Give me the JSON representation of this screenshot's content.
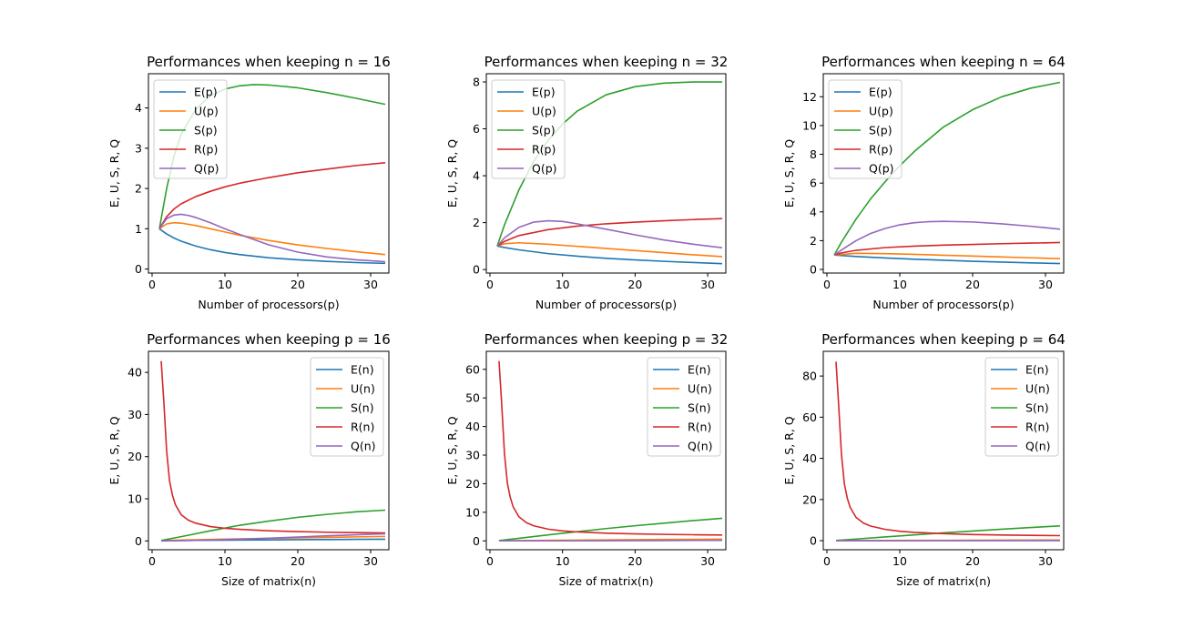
{
  "chart_data": [
    {
      "type": "line",
      "title": "Performances when keeping n = 16",
      "xlabel": "Number of processors(p)",
      "ylabel": "E, U, S, R, Q",
      "xlim": [
        -0.5,
        32.5
      ],
      "ylim": [
        -0.1,
        4.85
      ],
      "xticks": [
        0,
        10,
        20,
        30
      ],
      "yticks": [
        0,
        1,
        2,
        3,
        4
      ],
      "legend": "upper left",
      "series": [
        {
          "name": "E(p)",
          "color": "#1f77b4",
          "x": [
            1,
            2,
            3,
            4,
            6,
            8,
            10,
            12,
            16,
            20,
            24,
            28,
            32
          ],
          "y": [
            1.0,
            0.87,
            0.77,
            0.69,
            0.57,
            0.48,
            0.41,
            0.36,
            0.28,
            0.23,
            0.19,
            0.16,
            0.14
          ]
        },
        {
          "name": "U(p)",
          "color": "#ff7f0e",
          "x": [
            1,
            2,
            3,
            4,
            6,
            8,
            10,
            12,
            16,
            20,
            24,
            28,
            32
          ],
          "y": [
            1.0,
            1.12,
            1.15,
            1.14,
            1.08,
            1.0,
            0.92,
            0.84,
            0.71,
            0.6,
            0.51,
            0.43,
            0.36
          ]
        },
        {
          "name": "S(p)",
          "color": "#2ca02c",
          "x": [
            1,
            2,
            3,
            4,
            6,
            8,
            10,
            12,
            14,
            16,
            20,
            24,
            28,
            32
          ],
          "y": [
            1.0,
            2.0,
            2.8,
            3.35,
            3.97,
            4.3,
            4.47,
            4.55,
            4.58,
            4.57,
            4.5,
            4.38,
            4.24,
            4.09
          ]
        },
        {
          "name": "R(p)",
          "color": "#d62728",
          "x": [
            1,
            2,
            3,
            4,
            6,
            8,
            10,
            12,
            16,
            20,
            24,
            28,
            32
          ],
          "y": [
            1.0,
            1.3,
            1.49,
            1.62,
            1.8,
            1.93,
            2.04,
            2.13,
            2.27,
            2.39,
            2.48,
            2.57,
            2.64
          ]
        },
        {
          "name": "Q(p)",
          "color": "#9467bd",
          "x": [
            1,
            2,
            3,
            4,
            5,
            6,
            8,
            10,
            12,
            16,
            20,
            24,
            28,
            32
          ],
          "y": [
            1.0,
            1.25,
            1.34,
            1.36,
            1.33,
            1.28,
            1.15,
            1.0,
            0.86,
            0.6,
            0.42,
            0.3,
            0.23,
            0.18
          ]
        }
      ]
    },
    {
      "type": "line",
      "title": "Performances when keeping n = 32",
      "xlabel": "Number of processors(p)",
      "ylabel": "E, U, S, R, Q",
      "xlim": [
        -0.5,
        32.5
      ],
      "ylim": [
        -0.15,
        8.35
      ],
      "xticks": [
        0,
        10,
        20,
        30
      ],
      "yticks": [
        0,
        2,
        4,
        6,
        8
      ],
      "legend": "upper left",
      "series": [
        {
          "name": "E(p)",
          "color": "#1f77b4",
          "x": [
            1,
            2,
            4,
            8,
            12,
            16,
            20,
            24,
            28,
            32
          ],
          "y": [
            1.0,
            0.94,
            0.84,
            0.68,
            0.57,
            0.48,
            0.41,
            0.35,
            0.3,
            0.25
          ]
        },
        {
          "name": "U(p)",
          "color": "#ff7f0e",
          "x": [
            1,
            2,
            4,
            8,
            12,
            16,
            20,
            24,
            28,
            32
          ],
          "y": [
            1.0,
            1.1,
            1.14,
            1.08,
            0.99,
            0.9,
            0.81,
            0.72,
            0.63,
            0.55
          ]
        },
        {
          "name": "S(p)",
          "color": "#2ca02c",
          "x": [
            1,
            2,
            4,
            6,
            8,
            10,
            12,
            16,
            20,
            24,
            28,
            32
          ],
          "y": [
            1.0,
            1.9,
            3.4,
            4.6,
            5.5,
            6.2,
            6.75,
            7.45,
            7.8,
            7.95,
            8.0,
            8.0
          ]
        },
        {
          "name": "R(p)",
          "color": "#d62728",
          "x": [
            1,
            2,
            4,
            8,
            12,
            16,
            20,
            24,
            28,
            32
          ],
          "y": [
            1.0,
            1.2,
            1.45,
            1.7,
            1.85,
            1.95,
            2.02,
            2.08,
            2.13,
            2.17
          ]
        },
        {
          "name": "Q(p)",
          "color": "#9467bd",
          "x": [
            1,
            2,
            4,
            6,
            8,
            10,
            12,
            16,
            20,
            24,
            28,
            32
          ],
          "y": [
            1.0,
            1.35,
            1.8,
            2.02,
            2.08,
            2.05,
            1.95,
            1.72,
            1.48,
            1.26,
            1.08,
            0.93
          ]
        }
      ]
    },
    {
      "type": "line",
      "title": "Performances when keeping n = 64",
      "xlabel": "Number of processors(p)",
      "ylabel": "E, U, S, R, Q",
      "xlim": [
        -0.5,
        32.5
      ],
      "ylim": [
        -0.25,
        13.6
      ],
      "xticks": [
        0,
        10,
        20,
        30
      ],
      "yticks": [
        0,
        2,
        4,
        6,
        8,
        10,
        12
      ],
      "legend": "upper left",
      "series": [
        {
          "name": "E(p)",
          "color": "#1f77b4",
          "x": [
            1,
            4,
            8,
            12,
            16,
            20,
            24,
            28,
            32
          ],
          "y": [
            1.0,
            0.9,
            0.8,
            0.71,
            0.64,
            0.57,
            0.51,
            0.46,
            0.41
          ]
        },
        {
          "name": "U(p)",
          "color": "#ff7f0e",
          "x": [
            1,
            4,
            8,
            12,
            16,
            20,
            24,
            28,
            32
          ],
          "y": [
            1.0,
            1.12,
            1.1,
            1.05,
            0.99,
            0.93,
            0.87,
            0.81,
            0.75
          ]
        },
        {
          "name": "S(p)",
          "color": "#2ca02c",
          "x": [
            1,
            2,
            4,
            6,
            8,
            10,
            12,
            16,
            20,
            24,
            28,
            32
          ],
          "y": [
            1.0,
            1.9,
            3.5,
            4.9,
            6.1,
            7.2,
            8.2,
            9.9,
            11.1,
            12.0,
            12.6,
            13.0
          ]
        },
        {
          "name": "R(p)",
          "color": "#d62728",
          "x": [
            1,
            2,
            4,
            8,
            12,
            16,
            20,
            24,
            28,
            32
          ],
          "y": [
            1.0,
            1.15,
            1.33,
            1.52,
            1.62,
            1.69,
            1.74,
            1.79,
            1.83,
            1.87
          ]
        },
        {
          "name": "Q(p)",
          "color": "#9467bd",
          "x": [
            1,
            2,
            4,
            6,
            8,
            10,
            12,
            14,
            16,
            20,
            24,
            28,
            32
          ],
          "y": [
            1.0,
            1.35,
            2.0,
            2.5,
            2.85,
            3.1,
            3.25,
            3.32,
            3.34,
            3.3,
            3.17,
            3.0,
            2.8
          ]
        }
      ]
    },
    {
      "type": "line",
      "title": "Performances when keeping p = 16",
      "xlabel": "Size of matrix(n)",
      "ylabel": "E, U, S, R, Q",
      "xlim": [
        -0.5,
        32.5
      ],
      "ylim": [
        -2.1,
        45
      ],
      "xticks": [
        0,
        10,
        20,
        30
      ],
      "yticks": [
        0,
        10,
        20,
        30,
        40
      ],
      "legend": "upper right",
      "series": [
        {
          "name": "E(n)",
          "color": "#1f77b4",
          "x": [
            1.25,
            4,
            8,
            12,
            16,
            20,
            24,
            28,
            32
          ],
          "y": [
            0.06,
            0.1,
            0.15,
            0.2,
            0.24,
            0.28,
            0.32,
            0.36,
            0.4
          ]
        },
        {
          "name": "U(n)",
          "color": "#ff7f0e",
          "x": [
            1.25,
            4,
            8,
            12,
            16,
            20,
            24,
            28,
            32
          ],
          "y": [
            0.06,
            0.2,
            0.35,
            0.48,
            0.6,
            0.72,
            0.84,
            0.95,
            1.06
          ]
        },
        {
          "name": "S(n)",
          "color": "#2ca02c",
          "x": [
            1.25,
            4,
            8,
            12,
            16,
            20,
            24,
            28,
            32
          ],
          "y": [
            0.1,
            1.0,
            2.4,
            3.7,
            4.7,
            5.6,
            6.3,
            6.9,
            7.3
          ]
        },
        {
          "name": "R(n)",
          "color": "#d62728",
          "x": [
            1.25,
            1.6,
            2,
            2.4,
            2.8,
            3.2,
            4,
            5,
            6,
            8,
            10,
            12,
            16,
            20,
            24,
            28,
            32
          ],
          "y": [
            42.7,
            33.4,
            21.3,
            14.2,
            10.8,
            8.6,
            6.2,
            4.9,
            4.2,
            3.4,
            3.0,
            2.75,
            2.4,
            2.2,
            2.06,
            1.96,
            1.88
          ]
        },
        {
          "name": "Q(n)",
          "color": "#9467bd",
          "x": [
            1.25,
            4,
            8,
            12,
            16,
            20,
            24,
            28,
            32
          ],
          "y": [
            0.0,
            0.05,
            0.2,
            0.4,
            0.65,
            0.9,
            1.2,
            1.45,
            1.7
          ]
        }
      ]
    },
    {
      "type": "line",
      "title": "Performances when keeping p = 32",
      "xlabel": "Size of matrix(n)",
      "ylabel": "E, U, S, R, Q",
      "xlim": [
        -0.5,
        32.5
      ],
      "ylim": [
        -3.1,
        66.3
      ],
      "xticks": [
        0,
        10,
        20,
        30
      ],
      "yticks": [
        0,
        10,
        20,
        30,
        40,
        50,
        60
      ],
      "legend": "upper right",
      "series": [
        {
          "name": "E(n)",
          "color": "#1f77b4",
          "x": [
            1.25,
            8,
            16,
            24,
            32
          ],
          "y": [
            0.03,
            0.08,
            0.13,
            0.17,
            0.21
          ]
        },
        {
          "name": "U(n)",
          "color": "#ff7f0e",
          "x": [
            1.25,
            8,
            16,
            24,
            32
          ],
          "y": [
            0.03,
            0.2,
            0.35,
            0.5,
            0.62
          ]
        },
        {
          "name": "S(n)",
          "color": "#2ca02c",
          "x": [
            1.25,
            4,
            8,
            12,
            16,
            20,
            24,
            28,
            32
          ],
          "y": [
            0.1,
            0.9,
            2.1,
            3.2,
            4.3,
            5.3,
            6.2,
            7.1,
            7.9
          ]
        },
        {
          "name": "R(n)",
          "color": "#d62728",
          "x": [
            1.25,
            1.6,
            2,
            2.4,
            2.8,
            3.2,
            4,
            5,
            6,
            8,
            10,
            12,
            16,
            20,
            24,
            28,
            32
          ],
          "y": [
            62.9,
            48.6,
            30.6,
            20.2,
            15.2,
            11.9,
            8.4,
            6.4,
            5.3,
            4.1,
            3.5,
            3.15,
            2.7,
            2.45,
            2.27,
            2.15,
            2.05
          ]
        },
        {
          "name": "Q(n)",
          "color": "#9467bd",
          "x": [
            1.25,
            8,
            16,
            24,
            32
          ],
          "y": [
            0.0,
            0.02,
            0.06,
            0.12,
            0.2
          ]
        }
      ]
    },
    {
      "type": "line",
      "title": "Performances when keeping p = 64",
      "xlabel": "Size of matrix(n)",
      "ylabel": "E, U, S, R, Q",
      "xlim": [
        -0.5,
        32.5
      ],
      "ylim": [
        -4.4,
        92
      ],
      "xticks": [
        0,
        10,
        20,
        30
      ],
      "yticks": [
        0,
        20,
        40,
        60,
        80
      ],
      "legend": "upper right",
      "series": [
        {
          "name": "E(n)",
          "color": "#1f77b4",
          "x": [
            1.25,
            8,
            16,
            24,
            32
          ],
          "y": [
            0.02,
            0.04,
            0.06,
            0.08,
            0.1
          ]
        },
        {
          "name": "U(n)",
          "color": "#ff7f0e",
          "x": [
            1.25,
            8,
            16,
            24,
            32
          ],
          "y": [
            0.02,
            0.1,
            0.18,
            0.26,
            0.33
          ]
        },
        {
          "name": "S(n)",
          "color": "#2ca02c",
          "x": [
            1.25,
            4,
            8,
            12,
            16,
            20,
            24,
            28,
            32
          ],
          "y": [
            0.1,
            0.8,
            1.8,
            2.8,
            3.8,
            4.7,
            5.6,
            6.4,
            7.2
          ]
        },
        {
          "name": "R(n)",
          "color": "#d62728",
          "x": [
            1.25,
            1.6,
            2,
            2.4,
            2.8,
            3.2,
            4,
            5,
            6,
            8,
            10,
            12,
            16,
            20,
            24,
            28,
            32
          ],
          "y": [
            87.0,
            66.6,
            41.8,
            27.5,
            20.6,
            16.1,
            11.3,
            8.6,
            7.1,
            5.5,
            4.6,
            4.05,
            3.4,
            3.0,
            2.75,
            2.58,
            2.45
          ]
        },
        {
          "name": "Q(n)",
          "color": "#9467bd",
          "x": [
            1.25,
            8,
            16,
            24,
            32
          ],
          "y": [
            0.0,
            0.01,
            0.02,
            0.04,
            0.06
          ]
        }
      ]
    }
  ]
}
